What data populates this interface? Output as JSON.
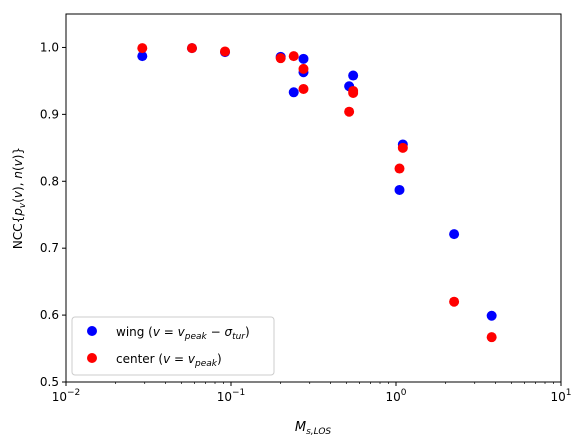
{
  "chart_data": {
    "type": "scatter",
    "xscale": "log",
    "xlim": [
      0.01,
      10
    ],
    "ylim": [
      0.5,
      1.05
    ],
    "grid": false,
    "legend_position": "lower-left",
    "xlabel": "M_s,LOS",
    "ylabel": "NCC{p_v(v), n(v)}",
    "x_ticks": [
      {
        "value": 0.01,
        "base": "10",
        "exp": "−2"
      },
      {
        "value": 0.1,
        "base": "10",
        "exp": "−1"
      },
      {
        "value": 1,
        "base": "10",
        "exp": "0"
      },
      {
        "value": 10,
        "base": "10",
        "exp": "1"
      }
    ],
    "y_ticks": [
      {
        "value": 0.5,
        "label": "0.5"
      },
      {
        "value": 0.6,
        "label": "0.6"
      },
      {
        "value": 0.7,
        "label": "0.7"
      },
      {
        "value": 0.8,
        "label": "0.8"
      },
      {
        "value": 0.9,
        "label": "0.9"
      },
      {
        "value": 1.0,
        "label": "1.0"
      }
    ],
    "series": [
      {
        "name": "wing (v = v_peak − σ_tur)",
        "color": "#0000ff",
        "points": [
          [
            0.029,
            0.987
          ],
          [
            0.058,
            0.999
          ],
          [
            0.092,
            0.993
          ],
          [
            0.2,
            0.986
          ],
          [
            0.24,
            0.933
          ],
          [
            0.275,
            0.983
          ],
          [
            0.275,
            0.963
          ],
          [
            0.52,
            0.942
          ],
          [
            0.55,
            0.958
          ],
          [
            1.05,
            0.787
          ],
          [
            1.1,
            0.855
          ],
          [
            2.25,
            0.721
          ],
          [
            3.8,
            0.599
          ]
        ]
      },
      {
        "name": "center (v = v_peak)",
        "color": "#ff0000",
        "points": [
          [
            0.029,
            0.999
          ],
          [
            0.058,
            0.999
          ],
          [
            0.092,
            0.994
          ],
          [
            0.2,
            0.984
          ],
          [
            0.24,
            0.987
          ],
          [
            0.275,
            0.938
          ],
          [
            0.275,
            0.968
          ],
          [
            0.52,
            0.904
          ],
          [
            0.55,
            0.935
          ],
          [
            0.55,
            0.932
          ],
          [
            1.05,
            0.819
          ],
          [
            1.1,
            0.85
          ],
          [
            2.25,
            0.62
          ],
          [
            3.8,
            0.567
          ]
        ]
      }
    ]
  }
}
